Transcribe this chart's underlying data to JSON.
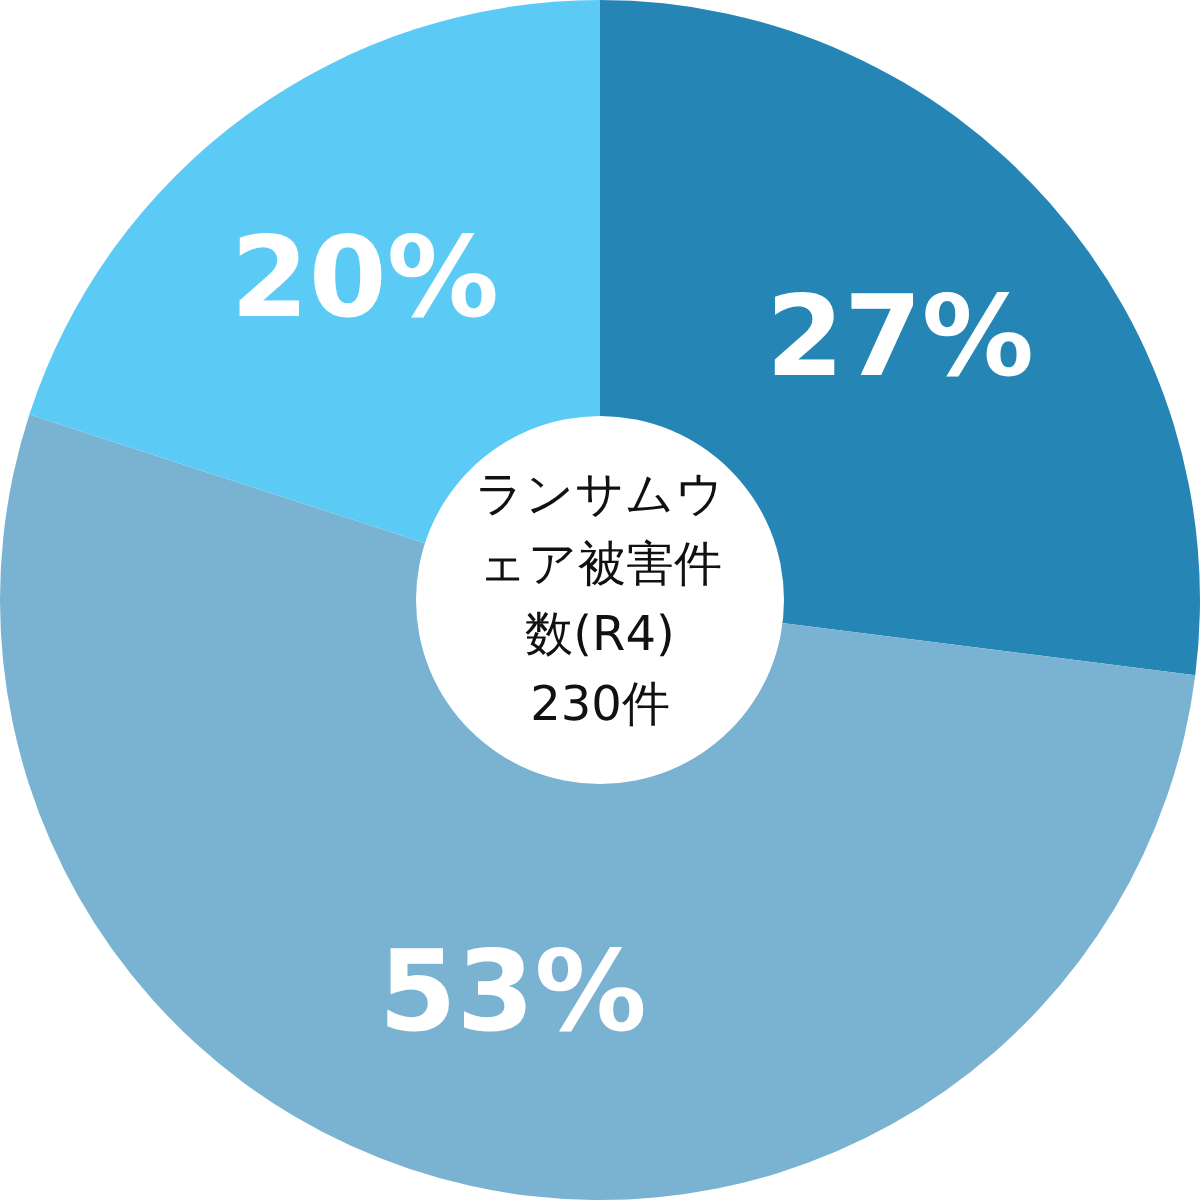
{
  "chart_data": {
    "type": "donut",
    "title": "ランサムウェア被害件数(R4)",
    "annotations": [
      "230件"
    ],
    "categories": [
      null,
      null,
      null
    ],
    "values": [
      27,
      53,
      20
    ],
    "colors": [
      "#2586b5",
      "#7ab3d1",
      "#5bcaf5"
    ],
    "value_labels": [
      "27%",
      "53%",
      "20%"
    ]
  }
}
